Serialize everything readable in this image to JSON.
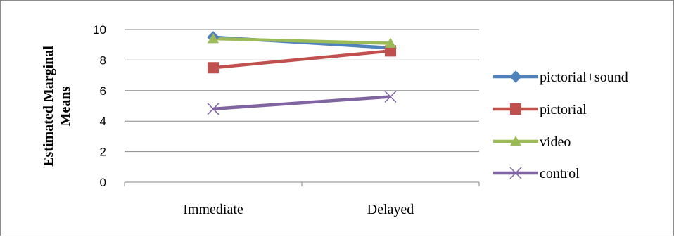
{
  "chart_data": {
    "type": "line",
    "title": "",
    "xlabel": "",
    "ylabel_lines": [
      "Estimated Marginal",
      "Means"
    ],
    "categories": [
      "Immediate",
      "Delayed"
    ],
    "ylim": [
      0,
      10
    ],
    "yticks": [
      "0",
      "2",
      "4",
      "6",
      "8",
      "10"
    ],
    "grid": true,
    "legend_position": "right",
    "series": [
      {
        "name": "pictorial+sound",
        "values": [
          9.5,
          8.8
        ],
        "color": "#4F81BD",
        "marker": "diamond"
      },
      {
        "name": "pictorial",
        "values": [
          7.5,
          8.6
        ],
        "color": "#C0504D",
        "marker": "square"
      },
      {
        "name": "video",
        "values": [
          9.4,
          9.1
        ],
        "color": "#9BBB59",
        "marker": "triangle"
      },
      {
        "name": "control",
        "values": [
          4.8,
          5.6
        ],
        "color": "#8064A2",
        "marker": "x"
      }
    ]
  }
}
